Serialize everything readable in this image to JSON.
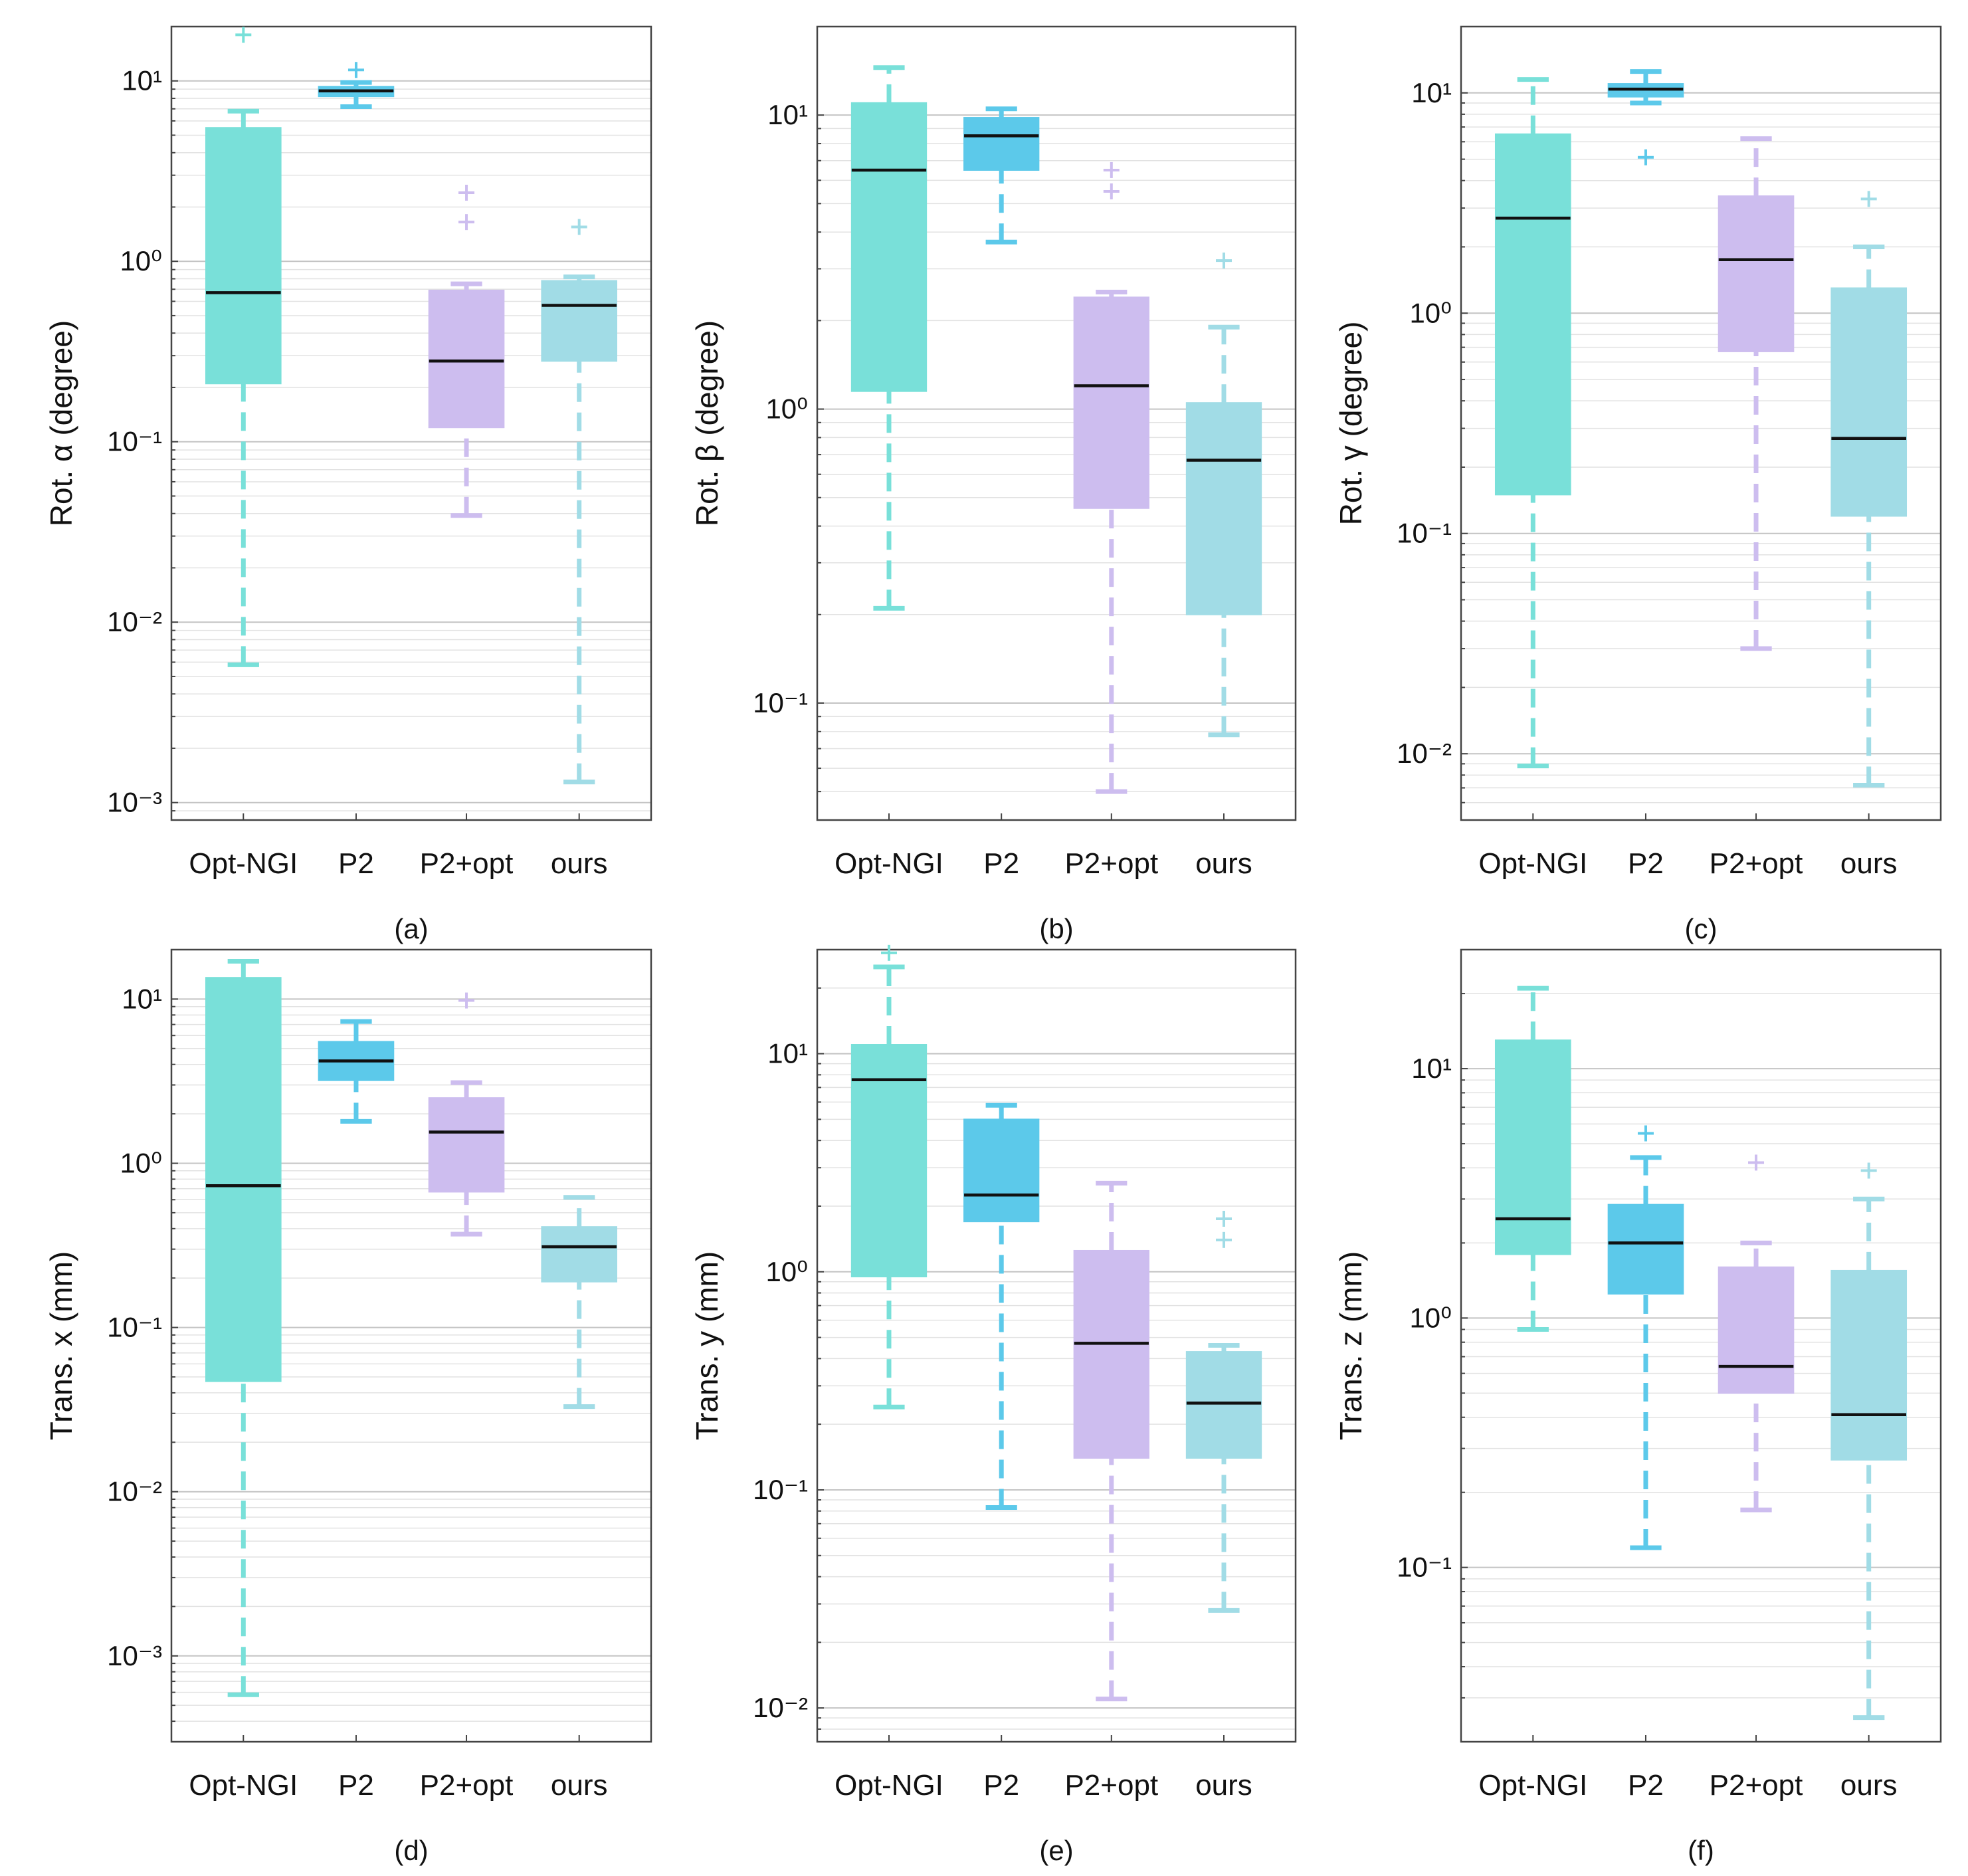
{
  "colors": {
    "Opt-NGI": "#79E0D9",
    "P2": "#5CC9EA",
    "P2+opt": "#CDBDEF",
    "ours": "#A1DCE6",
    "median": "#111111",
    "frame": "#444444",
    "grid_major": "#c4c4c4",
    "grid_minor": "#e2e2e2"
  },
  "chart_data": [
    {
      "type": "box",
      "panel": "(a)",
      "ylabel": "Rot. α (degree)",
      "yscale": "log",
      "ylim": [
        0.0008,
        20
      ],
      "ytick_exponents": [
        -3,
        -2,
        -1,
        0,
        1
      ],
      "categories": [
        "Opt-NGI",
        "P2",
        "P2+opt",
        "ours"
      ],
      "boxes": [
        {
          "whisker_low": 0.0058,
          "q1": 0.21,
          "median": 0.67,
          "q3": 5.5,
          "whisker_high": 6.8,
          "fliers": [
            18
          ]
        },
        {
          "whisker_low": 7.2,
          "q1": 8.2,
          "median": 8.8,
          "q3": 9.3,
          "whisker_high": 9.8,
          "fliers": [
            11.5
          ]
        },
        {
          "whisker_low": 0.039,
          "q1": 0.12,
          "median": 0.28,
          "q3": 0.69,
          "whisker_high": 0.75,
          "fliers": [
            1.65,
            2.4
          ]
        },
        {
          "whisker_low": 0.0013,
          "q1": 0.28,
          "median": 0.57,
          "q3": 0.78,
          "whisker_high": 0.82,
          "fliers": [
            1.55
          ]
        }
      ]
    },
    {
      "type": "box",
      "panel": "(b)",
      "ylabel": "Rot. β (degree)",
      "yscale": "log",
      "ylim": [
        0.04,
        20
      ],
      "ytick_exponents": [
        -1,
        0,
        1
      ],
      "categories": [
        "Opt-NGI",
        "P2",
        "P2+opt",
        "ours"
      ],
      "boxes": [
        {
          "whisker_low": 0.21,
          "q1": 1.15,
          "median": 6.5,
          "q3": 11,
          "whisker_high": 14.5,
          "fliers": []
        },
        {
          "whisker_low": 3.7,
          "q1": 6.5,
          "median": 8.5,
          "q3": 9.8,
          "whisker_high": 10.5,
          "fliers": []
        },
        {
          "whisker_low": 0.05,
          "q1": 0.46,
          "median": 1.2,
          "q3": 2.4,
          "whisker_high": 2.5,
          "fliers": [
            5.5,
            6.5
          ]
        },
        {
          "whisker_low": 0.078,
          "q1": 0.2,
          "median": 0.67,
          "q3": 1.05,
          "whisker_high": 1.9,
          "fliers": [
            3.2
          ]
        }
      ]
    },
    {
      "type": "box",
      "panel": "(c)",
      "ylabel": "Rot. γ (degree)",
      "yscale": "log",
      "ylim": [
        0.005,
        20
      ],
      "ytick_exponents": [
        -2,
        -1,
        0,
        1
      ],
      "categories": [
        "Opt-NGI",
        "P2",
        "P2+opt",
        "ours"
      ],
      "boxes": [
        {
          "whisker_low": 0.0088,
          "q1": 0.15,
          "median": 2.7,
          "q3": 6.5,
          "whisker_high": 11.5,
          "fliers": []
        },
        {
          "whisker_low": 9,
          "q1": 9.6,
          "median": 10.4,
          "q3": 11,
          "whisker_high": 12.5,
          "fliers": [
            5.1
          ]
        },
        {
          "whisker_low": 0.03,
          "q1": 0.67,
          "median": 1.75,
          "q3": 3.4,
          "whisker_high": 6.2,
          "fliers": []
        },
        {
          "whisker_low": 0.0072,
          "q1": 0.12,
          "median": 0.27,
          "q3": 1.3,
          "whisker_high": 2.0,
          "fliers": [
            3.3
          ]
        }
      ]
    },
    {
      "type": "box",
      "panel": "(d)",
      "ylabel": "Trans. x (mm)",
      "yscale": "log",
      "ylim": [
        0.0003,
        20
      ],
      "ytick_exponents": [
        -3,
        -2,
        -1,
        0,
        1
      ],
      "categories": [
        "Opt-NGI",
        "P2",
        "P2+opt",
        "ours"
      ],
      "boxes": [
        {
          "whisker_low": 0.00058,
          "q1": 0.047,
          "median": 0.73,
          "q3": 13.5,
          "whisker_high": 17,
          "fliers": []
        },
        {
          "whisker_low": 1.8,
          "q1": 3.2,
          "median": 4.2,
          "q3": 5.5,
          "whisker_high": 7.3,
          "fliers": []
        },
        {
          "whisker_low": 0.37,
          "q1": 0.67,
          "median": 1.55,
          "q3": 2.5,
          "whisker_high": 3.1,
          "fliers": [
            9.8
          ]
        },
        {
          "whisker_low": 0.033,
          "q1": 0.19,
          "median": 0.31,
          "q3": 0.41,
          "whisker_high": 0.62,
          "fliers": []
        }
      ]
    },
    {
      "type": "box",
      "panel": "(e)",
      "ylabel": "Trans. y (mm)",
      "yscale": "log",
      "ylim": [
        0.007,
        30
      ],
      "ytick_exponents": [
        -2,
        -1,
        0,
        1
      ],
      "categories": [
        "Opt-NGI",
        "P2",
        "P2+opt",
        "ours"
      ],
      "boxes": [
        {
          "whisker_low": 0.24,
          "q1": 0.95,
          "median": 7.6,
          "q3": 11,
          "whisker_high": 25,
          "fliers": [
            29
          ]
        },
        {
          "whisker_low": 0.083,
          "q1": 1.7,
          "median": 2.25,
          "q3": 5,
          "whisker_high": 5.8,
          "fliers": []
        },
        {
          "whisker_low": 0.011,
          "q1": 0.14,
          "median": 0.47,
          "q3": 1.25,
          "whisker_high": 2.55,
          "fliers": []
        },
        {
          "whisker_low": 0.028,
          "q1": 0.14,
          "median": 0.25,
          "q3": 0.43,
          "whisker_high": 0.46,
          "fliers": [
            1.4,
            1.75
          ]
        }
      ]
    },
    {
      "type": "box",
      "panel": "(f)",
      "ylabel": "Trans. z (mm)",
      "yscale": "log",
      "ylim": [
        0.02,
        30
      ],
      "ytick_exponents": [
        -1,
        0,
        1
      ],
      "categories": [
        "Opt-NGI",
        "P2",
        "P2+opt",
        "ours"
      ],
      "boxes": [
        {
          "whisker_low": 0.9,
          "q1": 1.8,
          "median": 2.5,
          "q3": 13,
          "whisker_high": 21,
          "fliers": []
        },
        {
          "whisker_low": 0.12,
          "q1": 1.25,
          "median": 2.0,
          "q3": 2.85,
          "whisker_high": 4.4,
          "fliers": [
            5.5
          ]
        },
        {
          "whisker_low": 0.17,
          "q1": 0.5,
          "median": 0.64,
          "q3": 1.6,
          "whisker_high": 2.0,
          "fliers": [
            4.2
          ]
        },
        {
          "whisker_low": 0.025,
          "q1": 0.27,
          "median": 0.41,
          "q3": 1.55,
          "whisker_high": 3.0,
          "fliers": [
            3.9
          ]
        }
      ]
    }
  ]
}
